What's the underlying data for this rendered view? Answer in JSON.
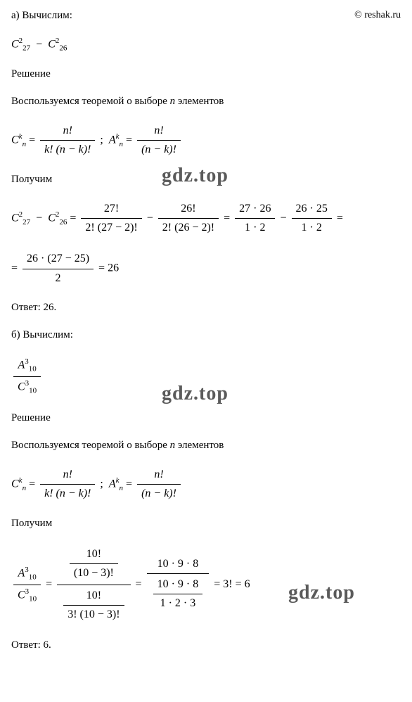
{
  "copyright": "© reshak.ru",
  "watermarks": {
    "top": "gdz.top",
    "mid": "gdz.top",
    "bot": "gdz.top"
  },
  "partA": {
    "heading": "а) Вычислим:",
    "expression": "C²₂₇ − C²₂₆",
    "solutionLabel": "Решение",
    "theorem": "Воспользуемся теоремой о выборе n элементов",
    "formula1_left_num": "n!",
    "formula1_left_den": "k! (n − k)!",
    "formula1_left": "Cₙᵏ =",
    "formula1_right": ";  Aₙᵏ =",
    "formula1_right_num": "n!",
    "formula1_right_den": "(n − k)!",
    "poluchim": "Получим",
    "calc_lhs": "C²₂₇ − C²₂₆ =",
    "calc_f1_num": "27!",
    "calc_f1_den": "2! (27 − 2)!",
    "calc_minus": "−",
    "calc_f2_num": "26!",
    "calc_f2_den": "2! (26 − 2)!",
    "calc_eq1": "=",
    "calc_f3_num": "27 · 26",
    "calc_f3_den": "1 · 2",
    "calc_f4_num": "26 · 25",
    "calc_f4_den": "1 · 2",
    "calc_eq2": "=",
    "calc2_eq": "=",
    "calc2_num": "26 · (27 − 25)",
    "calc2_den": "2",
    "calc2_result": "= 26",
    "answer": "Ответ: 26."
  },
  "partB": {
    "heading": "б) Вычислим:",
    "expr_num": "A³₁₀",
    "expr_den": "C³₁₀",
    "solutionLabel": "Решение",
    "theorem": "Воспользуемся теоремой о выборе n элементов",
    "formula1_left": "Cₙᵏ =",
    "formula1_left_num": "n!",
    "formula1_left_den": "k! (n − k)!",
    "formula1_right": ";  Aₙᵏ =",
    "formula1_right_num": "n!",
    "formula1_right_den": "(n − k)!",
    "poluchim": "Получим",
    "calc_lhs_num": "A³₁₀",
    "calc_lhs_den": "C³₁₀",
    "calc_eq1": "=",
    "calc_big_num_num": "10!",
    "calc_big_num_den": "(10 − 3)!",
    "calc_big_den_num": "10!",
    "calc_big_den_den": "3! (10 − 3)!",
    "calc_eq2": "=",
    "calc_f2_num": "10 · 9 · 8",
    "calc_f2_den_num": "10 · 9 · 8",
    "calc_f2_den_den": "1 · 2 · 3",
    "calc_result": "= 3! = 6",
    "answer": "Ответ: 6."
  },
  "colors": {
    "text": "#000000",
    "background": "#ffffff",
    "watermark": "#5a5a5a"
  }
}
